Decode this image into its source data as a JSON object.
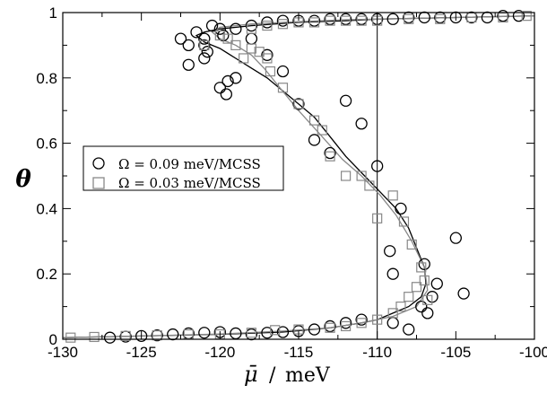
{
  "chart_data": {
    "type": "scatter",
    "title": "",
    "xlabel": "μ̄",
    "xunit": "meV",
    "ylabel": "θ",
    "xlim": [
      -130,
      -100
    ],
    "ylim": [
      0,
      1
    ],
    "xticks": [
      -130,
      -125,
      -120,
      -115,
      -110,
      -105,
      -100
    ],
    "yticks": [
      0,
      0.2,
      0.4,
      0.6,
      0.8,
      1
    ],
    "xtick_labels": [
      "-130",
      "-125",
      "-120",
      "-115",
      "-110",
      "-105",
      "-100"
    ],
    "ytick_labels": [
      "0",
      "0.2",
      "0.4",
      "0.6",
      "0.8",
      "1"
    ],
    "grid": false,
    "legend_position": "middle-left",
    "reference_line_x": -110,
    "series": [
      {
        "name": "Ω = 0.09 meV/MCSS",
        "marker": "circle",
        "color": "#000000",
        "x": [
          -127,
          -126,
          -125,
          -124,
          -123,
          -122,
          -121,
          -120,
          -119,
          -118,
          -117,
          -116,
          -115,
          -114,
          -113,
          -112,
          -111,
          -109,
          -108,
          -107.2,
          -106.5,
          -106.2,
          -107,
          -106.8,
          -109,
          -109.2,
          -108.5,
          -110,
          -111,
          -112,
          -113,
          -114,
          -115,
          -116,
          -117,
          -118,
          -119,
          -119.6,
          -120,
          -121,
          -122,
          -122,
          -121.5,
          -121,
          -120.5,
          -120,
          -119.8,
          -119,
          -118,
          -117,
          -116,
          -115,
          -114,
          -113,
          -112,
          -111,
          -110,
          -109,
          -108,
          -107,
          -106,
          -105,
          -104,
          -103,
          -102,
          -101,
          -121,
          -120.8,
          -119.5,
          -122.5,
          -104.5,
          -105
        ],
        "y": [
          0.005,
          0.008,
          0.01,
          0.012,
          0.015,
          0.018,
          0.02,
          0.022,
          0.018,
          0.015,
          0.02,
          0.022,
          0.025,
          0.03,
          0.04,
          0.05,
          0.06,
          0.05,
          0.03,
          0.1,
          0.13,
          0.17,
          0.23,
          0.08,
          0.2,
          0.27,
          0.4,
          0.53,
          0.66,
          0.73,
          0.57,
          0.61,
          0.72,
          0.82,
          0.87,
          0.92,
          0.8,
          0.75,
          0.77,
          0.86,
          0.9,
          0.84,
          0.94,
          0.92,
          0.96,
          0.95,
          0.93,
          0.95,
          0.96,
          0.97,
          0.975,
          0.975,
          0.975,
          0.98,
          0.98,
          0.98,
          0.98,
          0.98,
          0.985,
          0.985,
          0.985,
          0.985,
          0.985,
          0.985,
          0.99,
          0.99,
          0.9,
          0.88,
          0.79,
          0.92,
          0.14,
          0.31
        ]
      },
      {
        "name": "Ω = 0.03 meV/MCSS",
        "marker": "square",
        "color": "#888888",
        "x": [
          -129.5,
          -128,
          -126,
          -124,
          -122,
          -120,
          -118,
          -116.5,
          -115,
          -113,
          -112,
          -111,
          -110,
          -109,
          -108.5,
          -108,
          -107.5,
          -107,
          -106.8,
          -107.2,
          -107.8,
          -108.3,
          -109,
          -110,
          -110.5,
          -111,
          -112,
          -113,
          -113.5,
          -114,
          -115,
          -116,
          -116.8,
          -117,
          -117.5,
          -118,
          -118.5,
          -119,
          -119.5,
          -120,
          -121,
          -118,
          -117,
          -116,
          -115,
          -114,
          -113,
          -112,
          -111,
          -110,
          -108,
          -106,
          -104,
          -102,
          -100.5
        ],
        "y": [
          0.005,
          0.007,
          0.01,
          0.012,
          0.015,
          0.015,
          0.02,
          0.028,
          0.03,
          0.035,
          0.04,
          0.05,
          0.06,
          0.08,
          0.1,
          0.13,
          0.16,
          0.18,
          0.12,
          0.22,
          0.29,
          0.36,
          0.44,
          0.37,
          0.47,
          0.5,
          0.5,
          0.56,
          0.64,
          0.67,
          0.72,
          0.77,
          0.82,
          0.86,
          0.88,
          0.89,
          0.86,
          0.9,
          0.92,
          0.93,
          0.9,
          0.95,
          0.96,
          0.965,
          0.97,
          0.97,
          0.975,
          0.975,
          0.975,
          0.975,
          0.98,
          0.98,
          0.985,
          0.985,
          0.99
        ]
      }
    ],
    "fit_lines": [
      {
        "color": "#000000",
        "x": [
          -130,
          -125,
          -120,
          -116,
          -113,
          -111,
          -110,
          -109,
          -108,
          -107.2,
          -106.9,
          -107,
          -107.5,
          -108,
          -108.8,
          -109.8,
          -110.8,
          -112,
          -113,
          -114,
          -115,
          -116,
          -117,
          -118,
          -119,
          -120,
          -121,
          -121.5,
          -121,
          -120,
          -118,
          -115,
          -112,
          -110,
          -105,
          -100
        ],
        "y": [
          0.005,
          0.01,
          0.015,
          0.022,
          0.035,
          0.05,
          0.06,
          0.08,
          0.1,
          0.13,
          0.17,
          0.22,
          0.28,
          0.34,
          0.4,
          0.45,
          0.5,
          0.56,
          0.62,
          0.68,
          0.72,
          0.76,
          0.8,
          0.83,
          0.86,
          0.89,
          0.91,
          0.93,
          0.94,
          0.95,
          0.96,
          0.97,
          0.975,
          0.98,
          0.985,
          0.99
        ]
      },
      {
        "color": "#888888",
        "x": [
          -130,
          -125,
          -120,
          -116,
          -113,
          -111,
          -109,
          -107.5,
          -106.8,
          -107,
          -107.8,
          -108.8,
          -109.8,
          -111,
          -112.2,
          -113.5,
          -115,
          -116.2,
          -117.2,
          -118,
          -119,
          -120,
          -120.5,
          -120,
          -118,
          -115,
          -112,
          -110,
          -105,
          -100
        ],
        "y": [
          0.005,
          0.01,
          0.016,
          0.025,
          0.035,
          0.05,
          0.07,
          0.1,
          0.15,
          0.22,
          0.3,
          0.38,
          0.44,
          0.5,
          0.55,
          0.62,
          0.7,
          0.77,
          0.83,
          0.87,
          0.9,
          0.92,
          0.94,
          0.955,
          0.965,
          0.972,
          0.978,
          0.98,
          0.985,
          0.99
        ]
      }
    ]
  }
}
